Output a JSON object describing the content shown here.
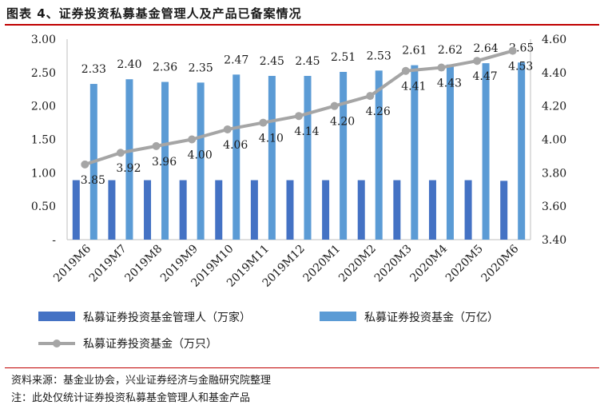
{
  "title": "图表 4、证券投资私募基金管理人及产品已备案情况",
  "source_note": "资料来源：基金业协会，兴业证券经济与金融研究院整理",
  "footnote": "注：此处仅统计证券投资私募基金管理人和基金产品",
  "colors": {
    "managers": "#4472c4",
    "funds": "#5b9bd5",
    "products": "#a5a5a5",
    "rule": "#c00000"
  },
  "chart_data": {
    "type": "bar",
    "categories": [
      "2019M6",
      "2019M7",
      "2019M8",
      "2019M9",
      "2019M10",
      "2019M11",
      "2019M12",
      "2020M1",
      "2020M2",
      "2020M3",
      "2020M4",
      "2020M5",
      "2020M6"
    ],
    "left_axis": {
      "ylim": [
        0,
        3.0
      ],
      "ticks": [
        "-",
        "0.50",
        "1.00",
        "1.50",
        "2.00",
        "2.50",
        "3.00"
      ],
      "tick_values": [
        0,
        0.5,
        1.0,
        1.5,
        2.0,
        2.5,
        3.0
      ]
    },
    "right_axis": {
      "ylim": [
        3.4,
        4.6
      ],
      "ticks": [
        "3.40",
        "3.60",
        "3.80",
        "4.00",
        "4.20",
        "4.40",
        "4.60"
      ],
      "tick_values": [
        3.4,
        3.6,
        3.8,
        4.0,
        4.2,
        4.4,
        4.6
      ]
    },
    "series": [
      {
        "name": "私募证券投资基金管理人（万家）",
        "type": "bar",
        "axis": "left",
        "values": [
          0.89,
          0.89,
          0.89,
          0.89,
          0.89,
          0.89,
          0.89,
          0.89,
          0.89,
          0.89,
          0.89,
          0.89,
          0.88
        ]
      },
      {
        "name": "私募证券投资基金（万亿）",
        "type": "bar",
        "axis": "left",
        "values": [
          2.33,
          2.4,
          2.36,
          2.35,
          2.47,
          2.45,
          2.45,
          2.51,
          2.53,
          2.61,
          2.62,
          2.64,
          2.65
        ],
        "labels": [
          "2.33",
          "2.40",
          "2.36",
          "2.35",
          "2.47",
          "2.45",
          "2.45",
          "2.51",
          "2.53",
          "2.61",
          "2.62",
          "2.64",
          "2.65"
        ]
      },
      {
        "name": "私募证券投资基金（万只）",
        "type": "line",
        "axis": "right",
        "values": [
          3.85,
          3.92,
          3.96,
          4.0,
          4.06,
          4.1,
          4.14,
          4.2,
          4.26,
          4.41,
          4.43,
          4.47,
          4.53
        ],
        "labels": [
          "3.85",
          "3.92",
          "3.96",
          "4.00",
          "4.06",
          "4.10",
          "4.14",
          "4.20",
          "4.26",
          "4.41",
          "4.43",
          "4.47",
          "4.53"
        ]
      }
    ],
    "legend_position": "bottom",
    "grid": false
  }
}
